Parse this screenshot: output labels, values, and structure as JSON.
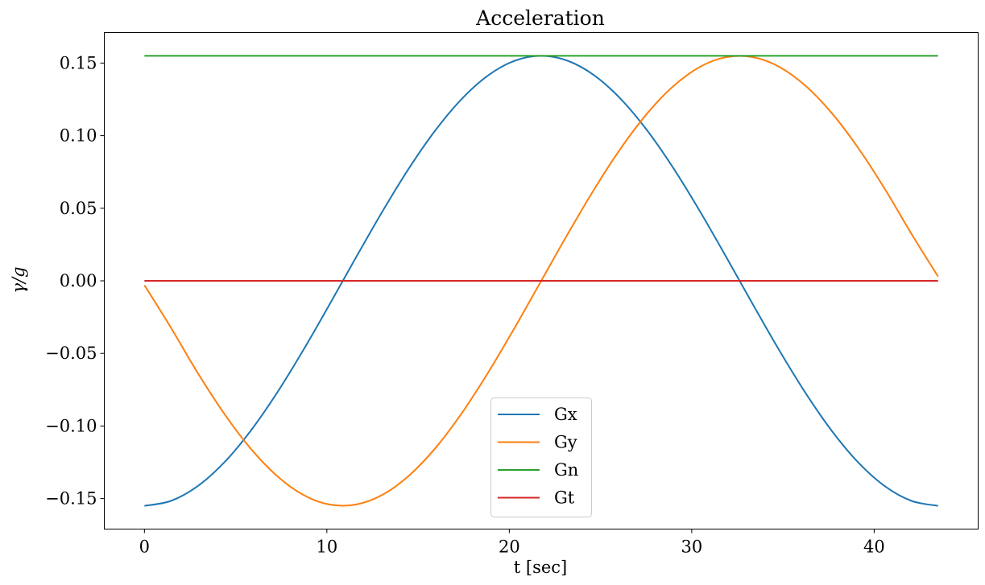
{
  "chart_data": {
    "type": "line",
    "title": "Acceleration",
    "xlabel": "t [sec]",
    "ylabel": "γ/g",
    "xlim": [
      -2.2,
      45.7
    ],
    "ylim": [
      -0.171,
      0.171
    ],
    "xticks": [
      0,
      10,
      20,
      30,
      40
    ],
    "xtick_labels": [
      "0",
      "10",
      "20",
      "30",
      "40"
    ],
    "yticks": [
      -0.15,
      -0.1,
      -0.05,
      0.0,
      0.05,
      0.1,
      0.15
    ],
    "ytick_labels": [
      "−0.15",
      "−0.10",
      "−0.05",
      "0.00",
      "0.05",
      "0.10",
      "0.15"
    ],
    "grid": false,
    "legend_position": "lower-center",
    "x": [
      0,
      1.45,
      2.9,
      4.35,
      5.8,
      7.25,
      8.7,
      10.15,
      11.6,
      13.05,
      14.5,
      15.95,
      17.4,
      18.85,
      20.3,
      21.75,
      23.2,
      24.65,
      26.1,
      27.55,
      29,
      30.45,
      31.9,
      33.35,
      34.8,
      36.25,
      37.7,
      39.15,
      40.6,
      42.05,
      43.5
    ],
    "series": [
      {
        "name": "Gx",
        "color": "#1f77b4",
        "values": [
          -0.155,
          -0.1516,
          -0.1416,
          -0.1254,
          -0.1037,
          -0.0775,
          -0.0479,
          -0.0162,
          0.0162,
          0.0479,
          0.0775,
          0.1037,
          0.1254,
          0.1416,
          0.1516,
          0.155,
          0.1516,
          0.1416,
          0.1254,
          0.1037,
          0.0775,
          0.0479,
          0.0162,
          -0.0162,
          -0.0479,
          -0.0775,
          -0.1037,
          -0.1254,
          -0.1416,
          -0.1516,
          -0.155
        ]
      },
      {
        "name": "Gy",
        "color": "#ff7f0e",
        "values": [
          -0.003,
          -0.0322,
          -0.063,
          -0.0911,
          -0.1152,
          -0.1342,
          -0.1474,
          -0.1541,
          -0.1541,
          -0.1474,
          -0.1342,
          -0.1152,
          -0.0911,
          -0.063,
          -0.0322,
          0,
          0.0322,
          0.063,
          0.0911,
          0.1152,
          0.1342,
          0.1474,
          0.1541,
          0.1541,
          0.1474,
          0.1342,
          0.1152,
          0.0911,
          0.063,
          0.0322,
          0.003
        ]
      },
      {
        "name": "Gn",
        "color": "#2ca02c",
        "values": [
          0.155,
          0.155,
          0.155,
          0.155,
          0.155,
          0.155,
          0.155,
          0.155,
          0.155,
          0.155,
          0.155,
          0.155,
          0.155,
          0.155,
          0.155,
          0.155,
          0.155,
          0.155,
          0.155,
          0.155,
          0.155,
          0.155,
          0.155,
          0.155,
          0.155,
          0.155,
          0.155,
          0.155,
          0.155,
          0.155,
          0.155
        ]
      },
      {
        "name": "Gt",
        "color": "#d62728",
        "values": [
          0,
          0,
          0,
          0,
          0,
          0,
          0,
          0,
          0,
          0,
          0,
          0,
          0,
          0,
          0,
          0,
          0,
          0,
          0,
          0,
          0,
          0,
          0,
          0,
          0,
          0,
          0,
          0,
          0,
          0,
          0
        ]
      }
    ]
  }
}
